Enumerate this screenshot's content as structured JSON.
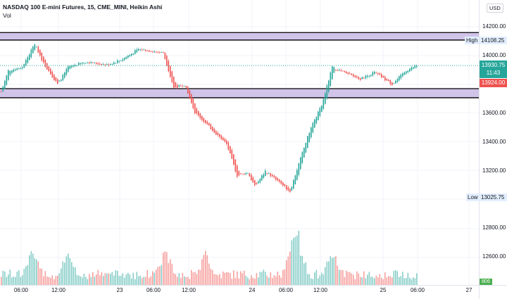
{
  "legend": {
    "title": "NASDAQ 100 E-mini Futures, 15, CME_MINI, Heikin Ashi",
    "volume": "Vol"
  },
  "currency": "USD",
  "price_axis": [
    "14200.00",
    "14000.00",
    "13600.00",
    "13400.00",
    "13200.00",
    "12800.00",
    "12600.00"
  ],
  "price_axis_values": [
    14200,
    14000,
    13600,
    13400,
    13200,
    12800,
    12600
  ],
  "time_axis": [
    "06:00",
    "12:00",
    "23",
    "06:00",
    "12:00",
    "24",
    "06:00",
    "12:00",
    "25",
    "06:00",
    "27"
  ],
  "high": {
    "label": "High",
    "value": "14108.25"
  },
  "low": {
    "label": "Low",
    "value": "13025.75"
  },
  "last_price": {
    "value": "13930.75",
    "countdown": "11:43",
    "color": "#26a69a"
  },
  "prev_price": {
    "value": "13924.00",
    "color": "#ef5350"
  },
  "volume_last": "806",
  "colors": {
    "up": "#26a69a",
    "down": "#ef5350",
    "zone": "#d1c4e9"
  },
  "chart_data": {
    "type": "candlestick-heikin-ashi",
    "zones": [
      [
        14108,
        14160
      ],
      [
        13707,
        13770
      ]
    ],
    "price_path": [
      [
        0,
        13750
      ],
      [
        4,
        13897
      ],
      [
        12,
        13920
      ],
      [
        19,
        14083
      ],
      [
        24,
        13946
      ],
      [
        32,
        13800
      ],
      [
        38,
        13920
      ],
      [
        48,
        13956
      ],
      [
        60,
        13936
      ],
      [
        68,
        13970
      ],
      [
        78,
        14044
      ],
      [
        92,
        14020
      ],
      [
        98,
        13775
      ],
      [
        104,
        13800
      ],
      [
        110,
        13604
      ],
      [
        120,
        13482
      ],
      [
        128,
        13384
      ],
      [
        134,
        13164
      ],
      [
        140,
        13188
      ],
      [
        144,
        13090
      ],
      [
        150,
        13198
      ],
      [
        158,
        13115
      ],
      [
        164,
        13056
      ],
      [
        170,
        13286
      ],
      [
        176,
        13506
      ],
      [
        182,
        13653
      ],
      [
        188,
        13920
      ],
      [
        196,
        13873
      ],
      [
        204,
        13838
      ],
      [
        212,
        13883
      ],
      [
        222,
        13800
      ],
      [
        230,
        13897
      ],
      [
        236,
        13930
      ]
    ],
    "volume_spikes": [
      [
        18,
        60
      ],
      [
        38,
        52
      ],
      [
        93,
        58
      ],
      [
        116,
        52
      ],
      [
        167,
        100
      ],
      [
        188,
        55
      ]
    ]
  }
}
